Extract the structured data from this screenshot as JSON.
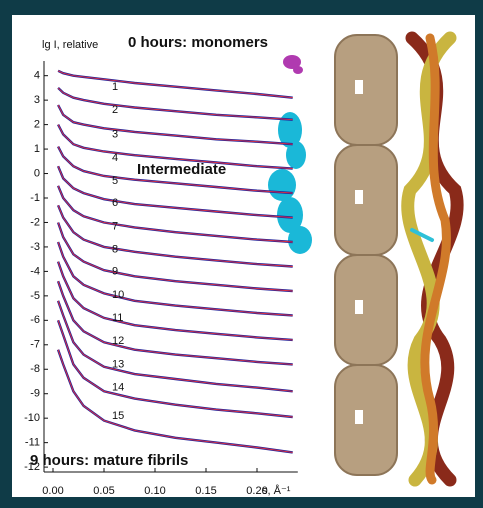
{
  "chart_data": {
    "type": "line",
    "y_label": "lg I, relative",
    "x_label": "s, Å⁻¹",
    "annotations": {
      "start": "0 hours: monomers",
      "middle": "Intermediate",
      "end": "9 hours: mature fibrils"
    },
    "annotation_colors": {
      "start": "#b03ab0",
      "middle": "#3a6ab8",
      "end": "#6b3a1a"
    },
    "xlim": [
      0,
      0.24
    ],
    "ylim": [
      -12.2,
      4.6
    ],
    "xticks": [
      {
        "value": 0,
        "label": "0.00"
      },
      0.05,
      {
        "value": 0.1,
        "label": "0.10"
      },
      0.15,
      {
        "value": 0.2,
        "label": "0.20"
      }
    ],
    "yticks": [
      -12,
      -11,
      -10,
      -9,
      -8,
      -7,
      -6,
      -5,
      -4,
      -3,
      -2,
      -1,
      0,
      1,
      2,
      3,
      4
    ],
    "fit_color": "#e03040",
    "x": [
      0.005,
      0.01,
      0.02,
      0.03,
      0.05,
      0.08,
      0.12,
      0.16,
      0.2,
      0.235
    ],
    "series": [
      {
        "name": "1",
        "color": "#25259a",
        "values": [
          4.2,
          4.1,
          4.0,
          3.95,
          3.85,
          3.7,
          3.55,
          3.4,
          3.25,
          3.1
        ]
      },
      {
        "name": "2",
        "color": "#25259a",
        "values": [
          3.5,
          3.3,
          3.1,
          3.0,
          2.85,
          2.7,
          2.55,
          2.4,
          2.3,
          2.2
        ]
      },
      {
        "name": "3",
        "color": "#25259a",
        "values": [
          2.8,
          2.4,
          2.1,
          2.0,
          1.85,
          1.7,
          1.55,
          1.4,
          1.3,
          1.2
        ]
      },
      {
        "name": "4",
        "color": "#25259a",
        "values": [
          2.0,
          1.6,
          1.2,
          1.05,
          0.9,
          0.75,
          0.6,
          0.45,
          0.3,
          0.2
        ]
      },
      {
        "name": "5",
        "color": "#25259a",
        "values": [
          1.1,
          0.7,
          0.3,
          0.1,
          -0.1,
          -0.25,
          -0.4,
          -0.55,
          -0.7,
          -0.8
        ]
      },
      {
        "name": "6",
        "color": "#25259a",
        "values": [
          0.3,
          -0.2,
          -0.6,
          -0.8,
          -1.05,
          -1.25,
          -1.4,
          -1.55,
          -1.7,
          -1.8
        ]
      },
      {
        "name": "7",
        "color": "#25259a",
        "values": [
          -0.5,
          -1.0,
          -1.5,
          -1.75,
          -2.0,
          -2.2,
          -2.4,
          -2.55,
          -2.7,
          -2.8
        ]
      },
      {
        "name": "8",
        "color": "#25259a",
        "values": [
          -1.3,
          -1.8,
          -2.4,
          -2.7,
          -3.0,
          -3.2,
          -3.4,
          -3.55,
          -3.7,
          -3.8
        ]
      },
      {
        "name": "9",
        "color": "#25259a",
        "values": [
          -2.0,
          -2.6,
          -3.3,
          -3.6,
          -3.95,
          -4.2,
          -4.4,
          -4.55,
          -4.7,
          -4.8
        ]
      },
      {
        "name": "10",
        "color": "#25259a",
        "values": [
          -2.8,
          -3.4,
          -4.2,
          -4.55,
          -4.9,
          -5.2,
          -5.4,
          -5.55,
          -5.7,
          -5.8
        ]
      },
      {
        "name": "11",
        "color": "#25259a",
        "values": [
          -3.6,
          -4.2,
          -5.1,
          -5.5,
          -5.9,
          -6.2,
          -6.4,
          -6.55,
          -6.7,
          -6.8
        ]
      },
      {
        "name": "12",
        "color": "#25259a",
        "values": [
          -4.4,
          -5.0,
          -6.0,
          -6.45,
          -6.9,
          -7.2,
          -7.4,
          -7.55,
          -7.7,
          -7.8
        ]
      },
      {
        "name": "13",
        "color": "#25259a",
        "values": [
          -5.2,
          -5.8,
          -6.9,
          -7.4,
          -7.9,
          -8.2,
          -8.4,
          -8.6,
          -8.75,
          -8.9
        ]
      },
      {
        "name": "14",
        "color": "#25259a",
        "values": [
          -6.0,
          -6.6,
          -7.8,
          -8.35,
          -8.9,
          -9.2,
          -9.45,
          -9.65,
          -9.8,
          -9.95
        ]
      },
      {
        "name": "15",
        "color": "#25259a",
        "values": [
          -7.2,
          -7.8,
          -8.9,
          -9.5,
          -10.1,
          -10.5,
          -10.8,
          -11.0,
          -11.2,
          -11.4
        ]
      }
    ]
  }
}
